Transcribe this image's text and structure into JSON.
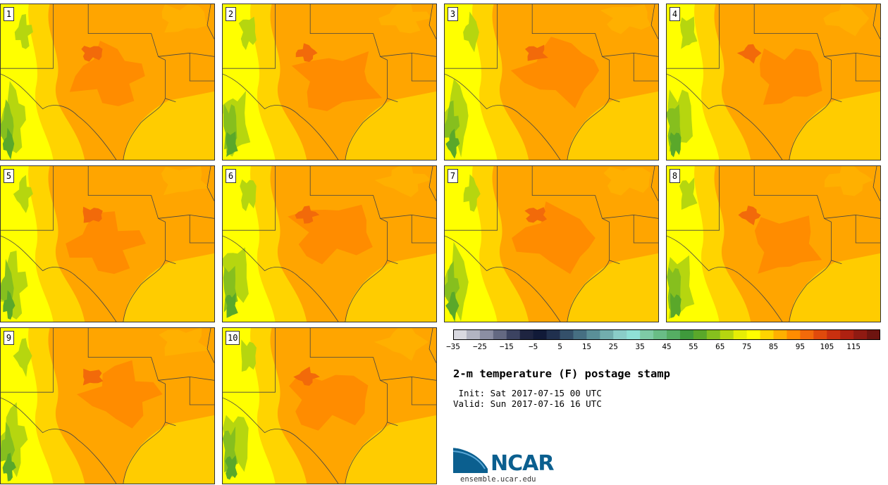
{
  "panels": [
    {
      "label": "1"
    },
    {
      "label": "2"
    },
    {
      "label": "3"
    },
    {
      "label": "4"
    },
    {
      "label": "5"
    },
    {
      "label": "6"
    },
    {
      "label": "7"
    },
    {
      "label": "8"
    },
    {
      "label": "9"
    },
    {
      "label": "10"
    }
  ],
  "colorbar": {
    "colors": [
      "#d9d9e0",
      "#b2b4c2",
      "#8b8ea3",
      "#646982",
      "#3c4361",
      "#1e2440",
      "#111a38",
      "#20304e",
      "#34506a",
      "#466f82",
      "#5a8f98",
      "#72aeae",
      "#8acdc8",
      "#8fe0d6",
      "#7ecba6",
      "#69bd86",
      "#55ad63",
      "#3f9a3c",
      "#5aa82a",
      "#86bf1e",
      "#b6d60f",
      "#e6ee05",
      "#ffff00",
      "#ffd400",
      "#ffb000",
      "#ff8c00",
      "#f26a0a",
      "#e04a0c",
      "#c9300f",
      "#ae2111",
      "#8f1a12",
      "#6e1410"
    ],
    "tick_labels": [
      "−35",
      "−25",
      "−15",
      "−5",
      "5",
      "15",
      "25",
      "35",
      "45",
      "55",
      "65",
      "75",
      "85",
      "95",
      "105",
      "115"
    ]
  },
  "title": "2-m temperature (F) postage stamp",
  "init_text": " Init: Sat 2017-07-15 00 UTC",
  "valid_text": "Valid: Sun 2017-07-16 16 UTC",
  "logo": {
    "name": "NCAR",
    "url": "ensemble.ucar.edu"
  }
}
